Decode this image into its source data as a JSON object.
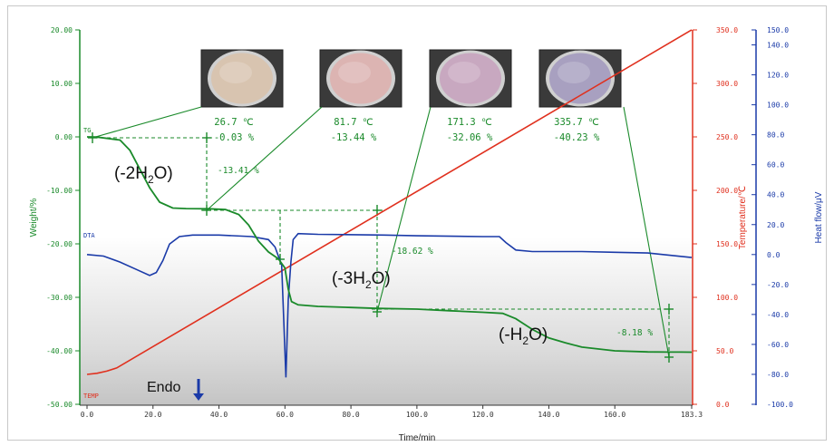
{
  "chart_data": {
    "type": "line",
    "xlabel": "Time/min",
    "x_ticks": [
      "0.0",
      "20.0",
      "40.0",
      "60.0",
      "80.0",
      "100.0",
      "120.0",
      "140.0",
      "160.0",
      "183.3"
    ],
    "xlim": [
      0,
      183.3
    ],
    "axes": {
      "weight": {
        "label": "Weight/%",
        "color": "#1a8a2a",
        "ylim": [
          -50,
          20
        ],
        "ticks": [
          "20.00",
          "10.00",
          "0.00",
          "-10.00",
          "-20.00",
          "-30.00",
          "-40.00",
          "-50.00"
        ]
      },
      "temperature": {
        "label": "Temperature/℃",
        "color": "#e0301e",
        "ylim": [
          0,
          350
        ],
        "ticks": [
          "350.0",
          "300.0",
          "250.0",
          "200.0",
          "150.0",
          "100.0",
          "50.0",
          "0.0"
        ]
      },
      "heat_flow": {
        "label": "Heat flow/μV",
        "color": "#1a3aa8",
        "ylim": [
          -100,
          150
        ],
        "ticks": [
          "150.0",
          "140.0",
          "120.0",
          "100.0",
          "80.0",
          "60.0",
          "40.0",
          "20.0",
          "0.0",
          "-20.0",
          "-40.0",
          "-60.0",
          "-80.0",
          "-100.0"
        ]
      }
    },
    "series": [
      {
        "name": "TG",
        "axis": "weight",
        "color": "#1a8a2a",
        "x": [
          0,
          3,
          10,
          13,
          16,
          19,
          22,
          26,
          30,
          37,
          42,
          46,
          49,
          52,
          55,
          58,
          60,
          61,
          62,
          64,
          70,
          80,
          88,
          100,
          110,
          120,
          126,
          130,
          135,
          140,
          145,
          150,
          160,
          170,
          176,
          180,
          183.3
        ],
        "y": [
          0,
          -0.03,
          -0.6,
          -2.5,
          -6,
          -9.5,
          -12.2,
          -13.3,
          -13.41,
          -13.44,
          -13.6,
          -14.5,
          -16.5,
          -19.5,
          -21.5,
          -22.8,
          -24.5,
          -28.5,
          -30.8,
          -31.4,
          -31.7,
          -31.9,
          -32.06,
          -32.2,
          -32.5,
          -32.8,
          -33.0,
          -34.0,
          -36.0,
          -37.6,
          -38.5,
          -39.3,
          -40.0,
          -40.2,
          -40.23,
          -40.23,
          -40.25
        ]
      },
      {
        "name": "DTA",
        "axis": "heat_flow",
        "color": "#1a3aa8",
        "x": [
          0,
          5,
          10,
          15,
          19,
          21,
          23,
          25,
          28,
          32,
          40,
          50,
          55,
          57,
          59,
          60.3,
          61,
          61.8,
          62.5,
          64,
          70,
          90,
          100,
          120,
          125,
          127,
          130,
          135,
          140,
          150,
          160,
          170,
          183.3
        ],
        "y": [
          0,
          -1,
          -5,
          -10,
          -14,
          -12,
          -4,
          7,
          12,
          13,
          13,
          12,
          10,
          5,
          -7,
          -82,
          -30,
          -5,
          10,
          14,
          13.5,
          13,
          12.5,
          12,
          12,
          8,
          3,
          2,
          2,
          2,
          1.5,
          1,
          -2
        ]
      },
      {
        "name": "TEMP",
        "axis": "temperature",
        "color": "#e0301e",
        "x": [
          0,
          3,
          6,
          9,
          183.3
        ],
        "y": [
          28,
          29,
          31,
          34,
          350
        ]
      }
    ],
    "series_labels": {
      "tg": "TG",
      "dta": "DTA",
      "temp": "TEMP"
    },
    "annotations": {
      "photo_labels": [
        {
          "temp": "26.7 ℃",
          "weight": "-0.03 %"
        },
        {
          "temp": "81.7 ℃",
          "weight": "-13.44 %"
        },
        {
          "temp": "171.3 ℃",
          "weight": "-32.06 %"
        },
        {
          "temp": "335.7 ℃",
          "weight": "-40.23 %"
        }
      ],
      "step_losses": [
        "-13.41 %",
        "-18.62 %",
        "-8.18 %"
      ],
      "water_2": {
        "open": "(-2H",
        "sub": "2",
        "close": "O)"
      },
      "water_3": {
        "open": "(-3H",
        "sub": "2",
        "close": "O)"
      },
      "water_1": {
        "open": "(-H",
        "sub": "2",
        "close": "O)"
      },
      "endo": "Endo"
    },
    "photo_colors": [
      "#d8c4b0",
      "#dcb4b2",
      "#c8a8c0",
      "#a8a0c0"
    ]
  }
}
